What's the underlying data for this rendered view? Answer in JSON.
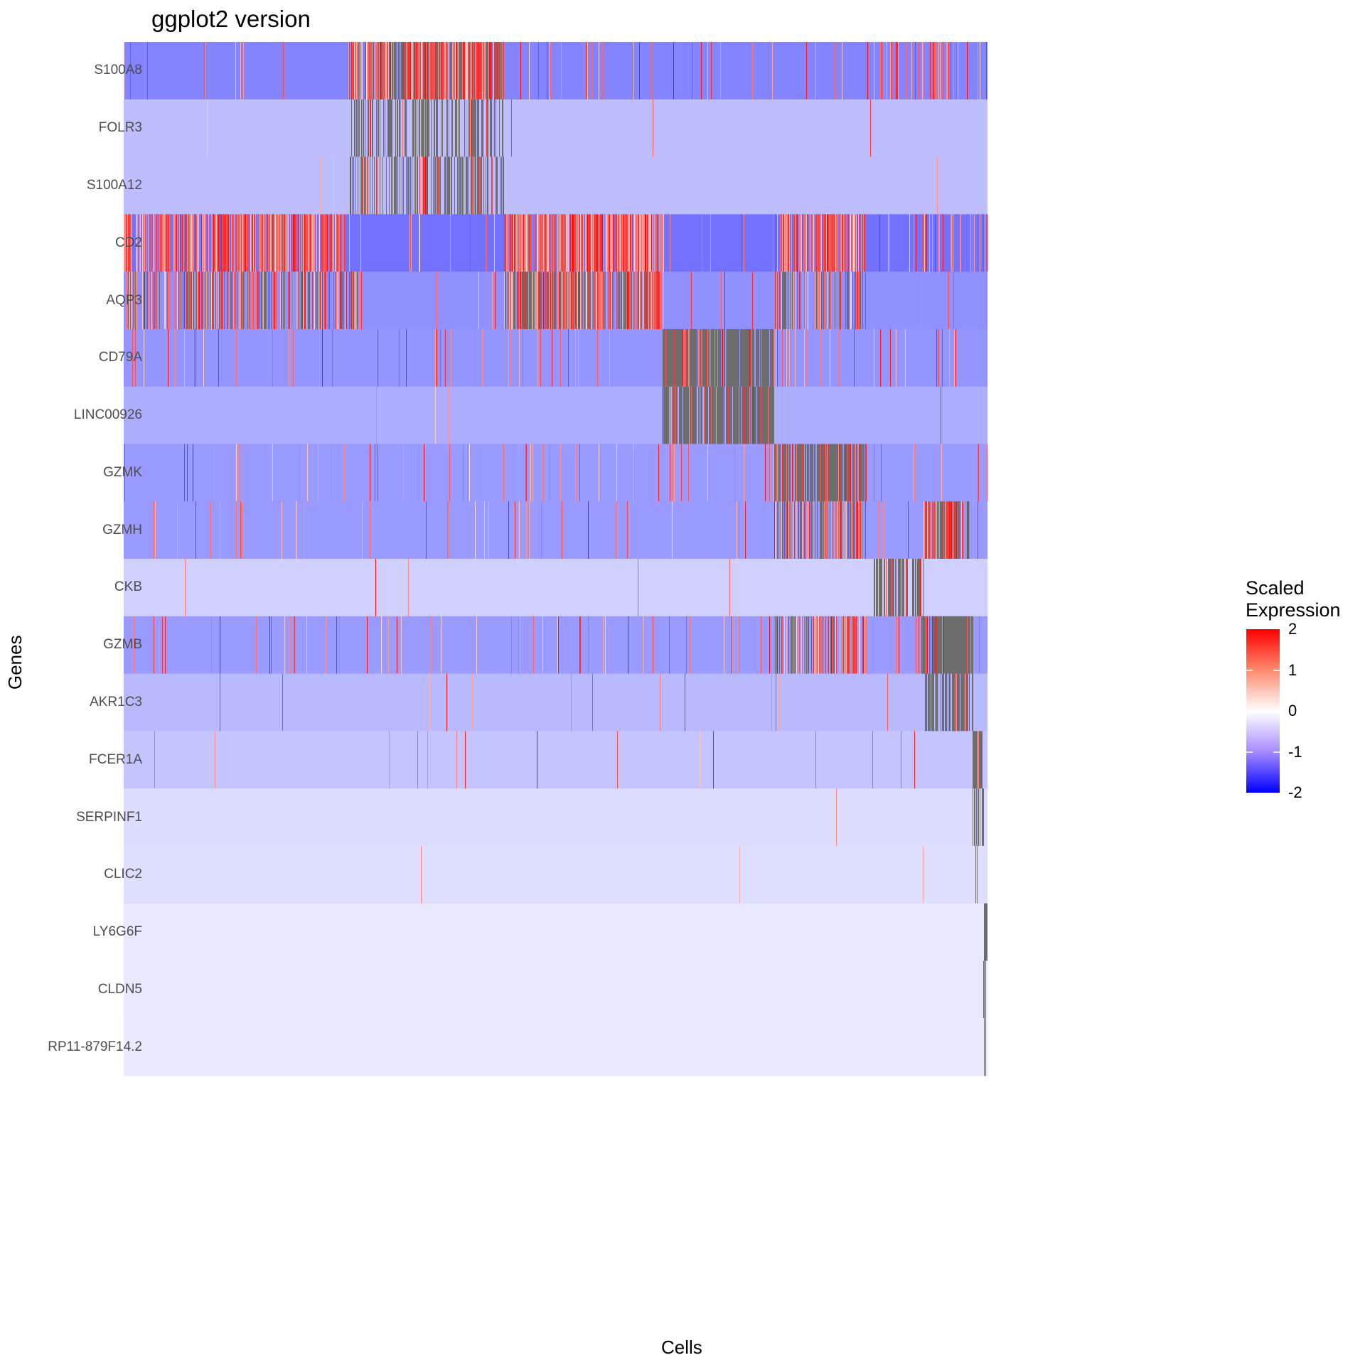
{
  "chart_data": {
    "type": "heatmap",
    "title": "ggplot2 version",
    "xlabel": "Cells",
    "ylabel": "Genes",
    "n_cells": 1215,
    "genes": [
      "S100A8",
      "FOLR3",
      "S100A12",
      "CD2",
      "AQP3",
      "CD79A",
      "LINC00926",
      "GZMK",
      "GZMH",
      "CKB",
      "GZMB",
      "AKR1C3",
      "FCER1A",
      "SERPINF1",
      "CLIC2",
      "LY6G6F",
      "CLDN5",
      "RP11-879F14.2"
    ],
    "legend": {
      "title_line1": "Scaled",
      "title_line2": "Expression",
      "ticks": [
        "2",
        "1",
        "0",
        "-1",
        "-2"
      ],
      "range": [
        -2,
        2
      ],
      "low_color": "#0000ff",
      "mid_color": "#ffffff",
      "high_color": "#ff0000"
    },
    "na_color": "#6d6d6d",
    "rows": [
      {
        "gene": "S100A8",
        "base": -1.05,
        "sparse": 0.05,
        "clusters": [
          [
            315,
            535,
            0.9,
            "mix"
          ],
          [
            1045,
            1215,
            0.25,
            "pos"
          ]
        ]
      },
      {
        "gene": "FOLR3",
        "base": -0.55,
        "sparse": 0.002,
        "clusters": [
          [
            318,
            535,
            0.55,
            "na"
          ]
        ]
      },
      {
        "gene": "S100A12",
        "base": -0.55,
        "sparse": 0.004,
        "clusters": [
          [
            318,
            535,
            0.5,
            "na"
          ]
        ]
      },
      {
        "gene": "CD2",
        "base": -1.2,
        "sparse": 0.05,
        "clusters": [
          [
            0,
            315,
            0.7,
            "pos"
          ],
          [
            535,
            760,
            0.85,
            "pos"
          ],
          [
            915,
            1045,
            0.7,
            "pos"
          ],
          [
            1120,
            1215,
            0.3,
            "pos"
          ]
        ]
      },
      {
        "gene": "AQP3",
        "base": -0.95,
        "sparse": 0.02,
        "clusters": [
          [
            0,
            335,
            0.55,
            "mix"
          ],
          [
            535,
            760,
            0.85,
            "mix"
          ],
          [
            915,
            1045,
            0.5,
            "mix"
          ]
        ]
      },
      {
        "gene": "CD79A",
        "base": -0.9,
        "sparse": 0.06,
        "clusters": [
          [
            757,
            915,
            0.9,
            "na"
          ]
        ]
      },
      {
        "gene": "LINC00926",
        "base": -0.7,
        "sparse": 0.006,
        "clusters": [
          [
            757,
            915,
            0.85,
            "na"
          ]
        ]
      },
      {
        "gene": "GZMK",
        "base": -0.85,
        "sparse": 0.06,
        "clusters": [
          [
            915,
            1045,
            0.85,
            "na"
          ]
        ]
      },
      {
        "gene": "GZMH",
        "base": -0.85,
        "sparse": 0.04,
        "clusters": [
          [
            915,
            1045,
            0.7,
            "mix"
          ],
          [
            1125,
            1190,
            0.85,
            "mix"
          ]
        ]
      },
      {
        "gene": "CKB",
        "base": -0.4,
        "sparse": 0.004,
        "clusters": [
          [
            1055,
            1125,
            0.6,
            "na"
          ]
        ]
      },
      {
        "gene": "GZMB",
        "base": -0.85,
        "sparse": 0.06,
        "clusters": [
          [
            915,
            1045,
            0.6,
            "mix"
          ],
          [
            1122,
            1195,
            0.95,
            "na"
          ]
        ]
      },
      {
        "gene": "AKR1C3",
        "base": -0.6,
        "sparse": 0.012,
        "clusters": [
          [
            1127,
            1195,
            0.6,
            "na"
          ]
        ]
      },
      {
        "gene": "FCER1A",
        "base": -0.5,
        "sparse": 0.012,
        "clusters": [
          [
            1194,
            1210,
            0.95,
            "na"
          ]
        ]
      },
      {
        "gene": "SERPINF1",
        "base": -0.3,
        "sparse": 0.0005,
        "clusters": [
          [
            1194,
            1210,
            0.5,
            "na"
          ]
        ]
      },
      {
        "gene": "CLIC2",
        "base": -0.28,
        "sparse": 0.0008,
        "clusters": [
          [
            1194,
            1205,
            0.3,
            "na"
          ]
        ]
      },
      {
        "gene": "LY6G6F",
        "base": -0.2,
        "sparse": 0,
        "clusters": [
          [
            1210,
            1215,
            0.7,
            "na"
          ]
        ]
      },
      {
        "gene": "CLDN5",
        "base": -0.2,
        "sparse": 0,
        "clusters": [
          [
            1209,
            1213,
            0.9,
            "na"
          ]
        ]
      },
      {
        "gene": "RP11-879F14.2",
        "base": -0.18,
        "sparse": 0,
        "clusters": [
          [
            1209,
            1213,
            0.5,
            "na"
          ]
        ]
      }
    ]
  }
}
